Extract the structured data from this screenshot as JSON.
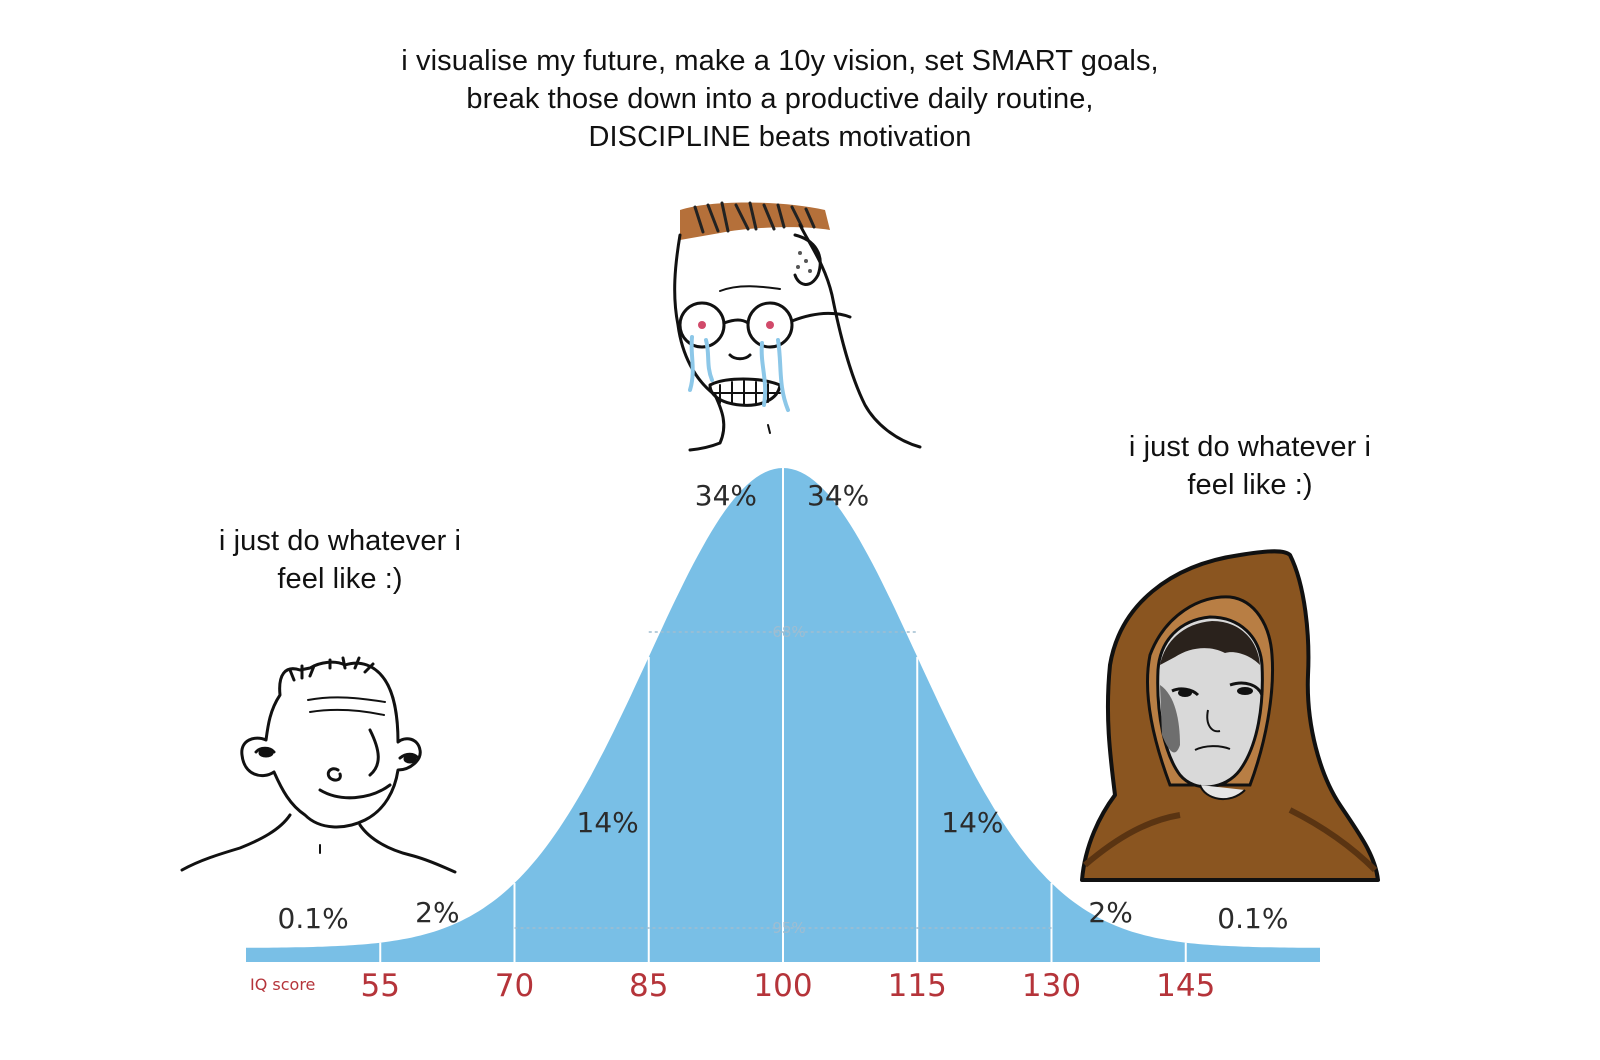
{
  "captions": {
    "top": [
      "i visualise my future, make a 10y vision, set SMART goals,",
      "break those down into a productive daily routine,",
      "DISCIPLINE beats motivation"
    ],
    "left": [
      "i just do whatever i",
      "feel like :)"
    ],
    "right": [
      "i just do whatever i",
      "feel like :)"
    ]
  },
  "chart_data": {
    "type": "area",
    "title": "",
    "xlabel": "IQ score",
    "ylabel": "",
    "x_ticks": [
      55,
      70,
      85,
      100,
      115,
      130,
      145
    ],
    "mean": 100,
    "sd": 15,
    "xlim": [
      40,
      160
    ],
    "segment_labels": [
      {
        "x": 47.5,
        "label": "0.1%"
      },
      {
        "x": 62.5,
        "label": "2%"
      },
      {
        "x": 77.5,
        "label": "14%"
      },
      {
        "x": 92.5,
        "label": "34%"
      },
      {
        "x": 107.5,
        "label": "34%"
      },
      {
        "x": 122.5,
        "label": "14%"
      },
      {
        "x": 137.5,
        "label": "2%"
      },
      {
        "x": 152.5,
        "label": "0.1%"
      }
    ],
    "inner_labels": [
      {
        "label": "68%",
        "range": [
          85,
          115
        ]
      },
      {
        "label": "95%",
        "range": [
          70,
          130
        ]
      }
    ],
    "fill_color": "#79bfe6",
    "tick_color": "#b5343a"
  },
  "figures": {
    "left": "smiling-wojak-icon",
    "center": "crying-glasses-wojak-icon",
    "right": "hooded-monk-wojak-icon"
  }
}
